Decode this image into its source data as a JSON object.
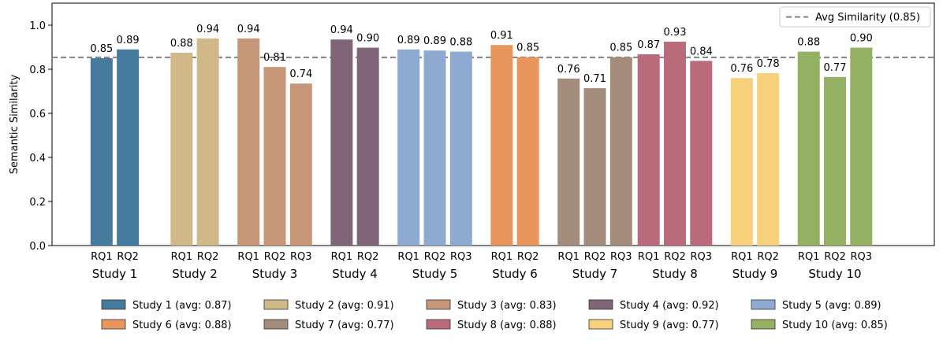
{
  "chart_data": {
    "type": "bar",
    "title": "",
    "xlabel": "",
    "ylabel": "Semantic Similarity",
    "ylim": [
      0,
      1.1
    ],
    "yticks": [
      "0.0",
      "0.2",
      "0.4",
      "0.6",
      "0.8",
      "1.0"
    ],
    "grid": false,
    "reference_line": {
      "label": "Avg Similarity (0.85)",
      "value": 0.854,
      "color": "#808080"
    },
    "legend_position": "bottom",
    "reference_legend_position": "top-right",
    "groups": [
      {
        "name": "Study 1",
        "color": "#457b9d",
        "legend": "Study 1 (avg: 0.87)",
        "bars": [
          {
            "label": "RQ1",
            "value": 0.85,
            "text": "0.85"
          },
          {
            "label": "RQ2",
            "value": 0.89,
            "text": "0.89"
          }
        ]
      },
      {
        "name": "Study 2",
        "color": "#d1b888",
        "legend": "Study 2 (avg: 0.91)",
        "bars": [
          {
            "label": "RQ1",
            "value": 0.875,
            "text": "0.88"
          },
          {
            "label": "RQ2",
            "value": 0.94,
            "text": "0.94"
          }
        ]
      },
      {
        "name": "Study 3",
        "color": "#c59678",
        "legend": "Study 3 (avg: 0.83)",
        "bars": [
          {
            "label": "RQ1",
            "value": 0.94,
            "text": "0.94"
          },
          {
            "label": "RQ2",
            "value": 0.81,
            "text": "0.81"
          },
          {
            "label": "RQ3",
            "value": 0.735,
            "text": "0.74"
          }
        ]
      },
      {
        "name": "Study 4",
        "color": "#7f6577",
        "legend": "Study 4 (avg: 0.92)",
        "bars": [
          {
            "label": "RQ1",
            "value": 0.935,
            "text": "0.94"
          },
          {
            "label": "RQ2",
            "value": 0.898,
            "text": "0.90"
          }
        ]
      },
      {
        "name": "Study 5",
        "color": "#8eaad0",
        "legend": "Study 5 (avg: 0.89)",
        "bars": [
          {
            "label": "RQ1",
            "value": 0.89,
            "text": "0.89"
          },
          {
            "label": "RQ2",
            "value": 0.885,
            "text": "0.89"
          },
          {
            "label": "RQ3",
            "value": 0.88,
            "text": "0.88"
          }
        ]
      },
      {
        "name": "Study 6",
        "color": "#e9965e",
        "legend": "Study 6 (avg: 0.88)",
        "bars": [
          {
            "label": "RQ1",
            "value": 0.91,
            "text": "0.91"
          },
          {
            "label": "RQ2",
            "value": 0.855,
            "text": "0.85"
          }
        ]
      },
      {
        "name": "Study 7",
        "color": "#a48c7d",
        "legend": "Study 7 (avg: 0.77)",
        "bars": [
          {
            "label": "RQ1",
            "value": 0.758,
            "text": "0.76"
          },
          {
            "label": "RQ2",
            "value": 0.714,
            "text": "0.71"
          },
          {
            "label": "RQ3",
            "value": 0.855,
            "text": "0.85"
          }
        ]
      },
      {
        "name": "Study 8",
        "color": "#b96a7b",
        "legend": "Study 8 (avg: 0.88)",
        "bars": [
          {
            "label": "RQ1",
            "value": 0.868,
            "text": "0.87"
          },
          {
            "label": "RQ2",
            "value": 0.925,
            "text": "0.93"
          },
          {
            "label": "RQ3",
            "value": 0.838,
            "text": "0.84"
          }
        ]
      },
      {
        "name": "Study 9",
        "color": "#f6d07a",
        "legend": "Study 9 (avg: 0.77)",
        "bars": [
          {
            "label": "RQ1",
            "value": 0.76,
            "text": "0.76"
          },
          {
            "label": "RQ2",
            "value": 0.782,
            "text": "0.78"
          }
        ]
      },
      {
        "name": "Study 10",
        "color": "#93b063",
        "legend": "Study 10 (avg: 0.85)",
        "bars": [
          {
            "label": "RQ1",
            "value": 0.88,
            "text": "0.88"
          },
          {
            "label": "RQ2",
            "value": 0.765,
            "text": "0.77"
          },
          {
            "label": "RQ3",
            "value": 0.898,
            "text": "0.90"
          }
        ]
      }
    ]
  }
}
